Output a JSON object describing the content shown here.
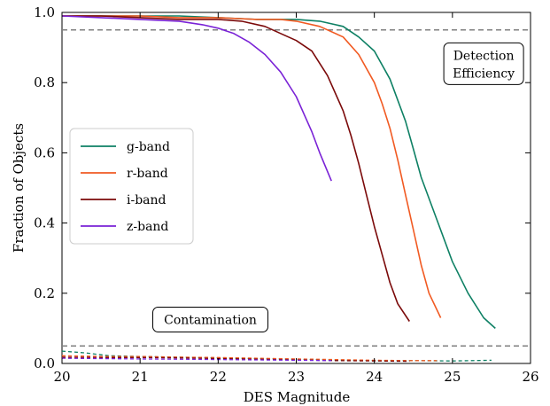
{
  "chart_data": {
    "type": "line",
    "title": "",
    "xlabel": "DES Magnitude",
    "ylabel": "Fraction of Objects",
    "xlim": [
      20,
      26
    ],
    "ylim": [
      0.0,
      1.0
    ],
    "xticks": [
      20,
      21,
      22,
      23,
      24,
      25,
      26
    ],
    "yticks": [
      0.0,
      0.2,
      0.4,
      0.6,
      0.8,
      1.0
    ],
    "xtick_labels": [
      "20",
      "21",
      "22",
      "23",
      "24",
      "25",
      "26"
    ],
    "ytick_labels": [
      "0.0",
      "0.2",
      "0.4",
      "0.6",
      "0.8",
      "1.0"
    ],
    "grid": false,
    "legend_position": "center-left",
    "reference_lines": [
      {
        "y": 0.95,
        "style": "dashed",
        "color": "#808080"
      },
      {
        "y": 0.05,
        "style": "dashed",
        "color": "#808080"
      }
    ],
    "annotations": [
      {
        "text_lines": [
          "Detection",
          "Efficiency"
        ],
        "x": 25.4,
        "y": 0.85
      },
      {
        "text": "Contamination",
        "x": 21.9,
        "y": 0.125
      }
    ],
    "series": [
      {
        "name": "g-band",
        "color": "#0e8064",
        "efficiency": {
          "x": [
            20.0,
            20.5,
            21.0,
            21.5,
            22.0,
            22.5,
            23.0,
            23.3,
            23.6,
            23.8,
            24.0,
            24.2,
            24.4,
            24.5,
            24.6,
            24.8,
            25.0,
            25.2,
            25.4,
            25.55
          ],
          "y": [
            0.99,
            0.99,
            0.99,
            0.99,
            0.985,
            0.98,
            0.98,
            0.975,
            0.96,
            0.93,
            0.89,
            0.81,
            0.69,
            0.61,
            0.53,
            0.41,
            0.29,
            0.2,
            0.13,
            0.1
          ]
        },
        "contamination": {
          "x": [
            20.0,
            20.3,
            20.6,
            21.0,
            21.5,
            22.0,
            22.5,
            23.0,
            23.5,
            24.0,
            24.5,
            25.0,
            25.5
          ],
          "y": [
            0.035,
            0.03,
            0.022,
            0.02,
            0.018,
            0.016,
            0.014,
            0.012,
            0.01,
            0.008,
            0.008,
            0.007,
            0.009
          ]
        }
      },
      {
        "name": "r-band",
        "color": "#f15a22",
        "efficiency": {
          "x": [
            20.0,
            20.5,
            21.0,
            21.5,
            22.0,
            22.5,
            22.8,
            23.0,
            23.3,
            23.6,
            23.8,
            24.0,
            24.1,
            24.2,
            24.3,
            24.4,
            24.5,
            24.6,
            24.7,
            24.85
          ],
          "y": [
            0.99,
            0.99,
            0.99,
            0.985,
            0.985,
            0.98,
            0.98,
            0.975,
            0.96,
            0.93,
            0.88,
            0.8,
            0.74,
            0.67,
            0.58,
            0.48,
            0.38,
            0.28,
            0.2,
            0.13
          ]
        },
        "contamination": {
          "x": [
            20.0,
            20.5,
            21.0,
            21.5,
            22.0,
            22.5,
            23.0,
            23.5,
            24.0,
            24.5,
            24.8
          ],
          "y": [
            0.022,
            0.02,
            0.02,
            0.018,
            0.017,
            0.015,
            0.013,
            0.011,
            0.009,
            0.008,
            0.008
          ]
        }
      },
      {
        "name": "i-band",
        "color": "#7b0a0a",
        "efficiency": {
          "x": [
            20.0,
            20.5,
            21.0,
            21.5,
            22.0,
            22.3,
            22.6,
            22.8,
            23.0,
            23.2,
            23.4,
            23.6,
            23.7,
            23.8,
            23.9,
            24.0,
            24.1,
            24.2,
            24.3,
            24.45
          ],
          "y": [
            0.99,
            0.99,
            0.985,
            0.98,
            0.98,
            0.975,
            0.96,
            0.94,
            0.92,
            0.89,
            0.82,
            0.72,
            0.65,
            0.57,
            0.48,
            0.39,
            0.31,
            0.23,
            0.17,
            0.12
          ]
        },
        "contamination": {
          "x": [
            20.0,
            20.5,
            21.0,
            21.5,
            22.0,
            22.5,
            23.0,
            23.5,
            24.0,
            24.45
          ],
          "y": [
            0.018,
            0.017,
            0.017,
            0.016,
            0.014,
            0.012,
            0.01,
            0.008,
            0.007,
            0.006
          ]
        }
      },
      {
        "name": "z-band",
        "color": "#7a22d6",
        "efficiency": {
          "x": [
            20.0,
            20.5,
            21.0,
            21.5,
            21.8,
            22.0,
            22.2,
            22.4,
            22.6,
            22.8,
            23.0,
            23.1,
            23.2,
            23.3,
            23.45
          ],
          "y": [
            0.99,
            0.985,
            0.98,
            0.975,
            0.965,
            0.955,
            0.94,
            0.915,
            0.88,
            0.83,
            0.76,
            0.71,
            0.66,
            0.6,
            0.52
          ]
        },
        "contamination": {
          "x": [
            20.0,
            20.5,
            21.0,
            21.5,
            22.0,
            22.5,
            23.0,
            23.45
          ],
          "y": [
            0.015,
            0.014,
            0.013,
            0.012,
            0.011,
            0.01,
            0.009,
            0.008
          ]
        }
      }
    ]
  }
}
